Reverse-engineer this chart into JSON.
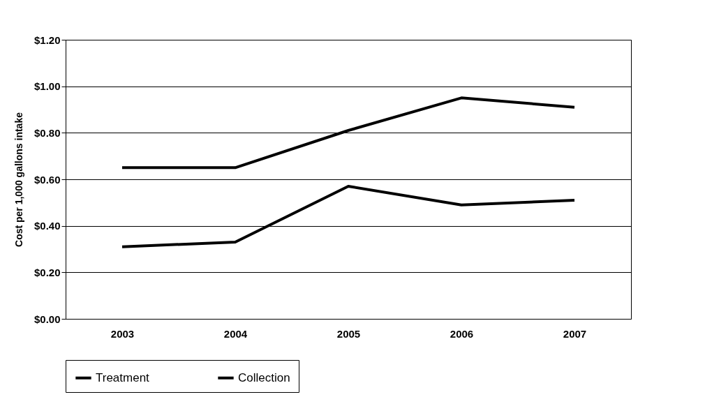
{
  "chart_data": {
    "type": "line",
    "ylabel": "Cost per 1,000 gallons intake",
    "categories": [
      "2003",
      "2004",
      "2005",
      "2006",
      "2007"
    ],
    "series": [
      {
        "name": "Treatment",
        "color": "#000000",
        "values": [
          0.65,
          0.65,
          0.81,
          0.95,
          0.91
        ]
      },
      {
        "name": "Collection",
        "color": "#000000",
        "values": [
          0.31,
          0.33,
          0.57,
          0.49,
          0.51
        ]
      }
    ],
    "ylim": [
      0,
      1.2
    ],
    "yticks": [
      {
        "value": 0,
        "label": "$0.00"
      },
      {
        "value": 0.2,
        "label": "$0.20"
      },
      {
        "value": 0.4,
        "label": "$0.40"
      },
      {
        "value": 0.6,
        "label": "$0.60"
      },
      {
        "value": 0.8,
        "label": "$0.80"
      },
      {
        "value": 1.0,
        "label": "$1.00"
      },
      {
        "value": 1.2,
        "label": "$1.20"
      }
    ],
    "grid": "y",
    "legend": "bottom",
    "line_style": "solid",
    "marker": "none"
  }
}
